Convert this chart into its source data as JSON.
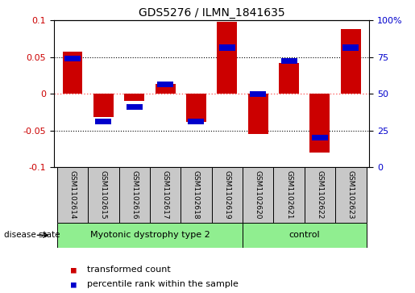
{
  "title": "GDS5276 / ILMN_1841635",
  "samples": [
    "GSM1102614",
    "GSM1102615",
    "GSM1102616",
    "GSM1102617",
    "GSM1102618",
    "GSM1102619",
    "GSM1102620",
    "GSM1102621",
    "GSM1102622",
    "GSM1102623"
  ],
  "red_bars": [
    0.057,
    -0.032,
    -0.01,
    0.013,
    -0.038,
    0.098,
    -0.055,
    0.042,
    -0.08,
    0.088
  ],
  "blue_markers": [
    0.048,
    -0.038,
    -0.018,
    0.013,
    -0.038,
    0.063,
    0.0,
    0.045,
    -0.06,
    0.063
  ],
  "groups": [
    {
      "label": "Myotonic dystrophy type 2",
      "n_samples": 6,
      "color": "#90EE90"
    },
    {
      "label": "control",
      "n_samples": 4,
      "color": "#90EE90"
    }
  ],
  "ylim": [
    -0.1,
    0.1
  ],
  "yticks_left": [
    -0.1,
    -0.05,
    0.0,
    0.05,
    0.1
  ],
  "yticks_right": [
    0,
    25,
    50,
    75,
    100
  ],
  "red_bar_color": "#CC0000",
  "blue_marker_color": "#0000CC",
  "bar_width": 0.65,
  "disease_state_label": "disease state",
  "legend_red": "transformed count",
  "legend_blue": "percentile rank within the sample",
  "hline_color": "#FF6666",
  "grid_color": "black",
  "sample_box_color": "#C8C8C8",
  "left_label_color": "#CC0000",
  "right_label_color": "#0000CC",
  "figsize": [
    5.15,
    3.63
  ],
  "dpi": 100
}
